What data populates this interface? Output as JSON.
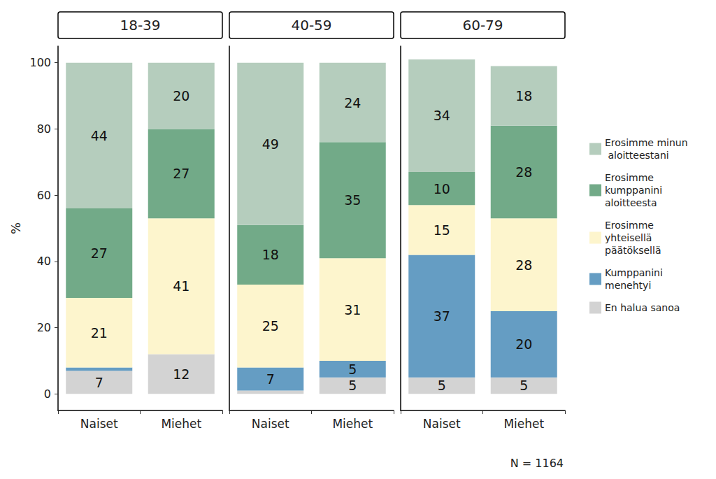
{
  "chart_data": {
    "type": "bar",
    "stacked": true,
    "data_labels": true,
    "legend": "right",
    "grid": false,
    "y_label": "%",
    "ylim": [
      -5,
      105
    ],
    "yticks": [
      0,
      20,
      40,
      60,
      80,
      100
    ],
    "categories": [
      "Naiset",
      "Miehet"
    ],
    "annotation": "N = 1164",
    "panels": [
      {
        "title": "18-39",
        "series": [
          {
            "name": "Erosimme minun aloitteestani",
            "color": "#b5cdbd",
            "values": [
              44,
              20
            ],
            "value_labels": [
              "44",
              "20"
            ]
          },
          {
            "name": "Erosimme kumppanini aloitteesta",
            "color": "#72aa88",
            "values": [
              27,
              27
            ],
            "value_labels": [
              "27",
              "27"
            ]
          },
          {
            "name": "Erosimme yhteisellä päätöksellä",
            "color": "#fdf5cd",
            "values": [
              21,
              41
            ],
            "value_labels": [
              "21",
              "41"
            ]
          },
          {
            "name": "Kumppanini menehtyi",
            "color": "#659dc3",
            "values": [
              1,
              0
            ],
            "value_labels": [
              null,
              null
            ]
          },
          {
            "name": "En halua sanoa",
            "color": "#d3d3d3",
            "values": [
              7,
              12
            ],
            "value_labels": [
              "7",
              "12"
            ]
          }
        ]
      },
      {
        "title": "40-59",
        "series": [
          {
            "name": "Erosimme minun aloitteestani",
            "color": "#b5cdbd",
            "values": [
              49,
              24
            ],
            "value_labels": [
              "49",
              "24"
            ]
          },
          {
            "name": "Erosimme kumppanini aloitteesta",
            "color": "#72aa88",
            "values": [
              18,
              35
            ],
            "value_labels": [
              "18",
              "35"
            ]
          },
          {
            "name": "Erosimme yhteisellä päätöksellä",
            "color": "#fdf5cd",
            "values": [
              25,
              31
            ],
            "value_labels": [
              "25",
              "31"
            ]
          },
          {
            "name": "Kumppanini menehtyi",
            "color": "#659dc3",
            "values": [
              7,
              5
            ],
            "value_labels": [
              "7",
              "5"
            ]
          },
          {
            "name": "En halua sanoa",
            "color": "#d3d3d3",
            "values": [
              1,
              5
            ],
            "value_labels": [
              null,
              "5"
            ]
          }
        ]
      },
      {
        "title": "60-79",
        "series": [
          {
            "name": "Erosimme minun aloitteestani",
            "color": "#b5cdbd",
            "values": [
              34,
              18
            ],
            "value_labels": [
              "34",
              "18"
            ]
          },
          {
            "name": "Erosimme kumppanini aloitteesta",
            "color": "#72aa88",
            "values": [
              10,
              28
            ],
            "value_labels": [
              "10",
              "28"
            ]
          },
          {
            "name": "Erosimme yhteisellä päätöksellä",
            "color": "#fdf5cd",
            "values": [
              15,
              28
            ],
            "value_labels": [
              "15",
              "28"
            ]
          },
          {
            "name": "Kumppanini menehtyi",
            "color": "#659dc3",
            "values": [
              37,
              20
            ],
            "value_labels": [
              "37",
              "20"
            ]
          },
          {
            "name": "En halua sanoa",
            "color": "#d3d3d3",
            "values": [
              5,
              5
            ],
            "value_labels": [
              "5",
              "5"
            ]
          }
        ]
      }
    ]
  }
}
